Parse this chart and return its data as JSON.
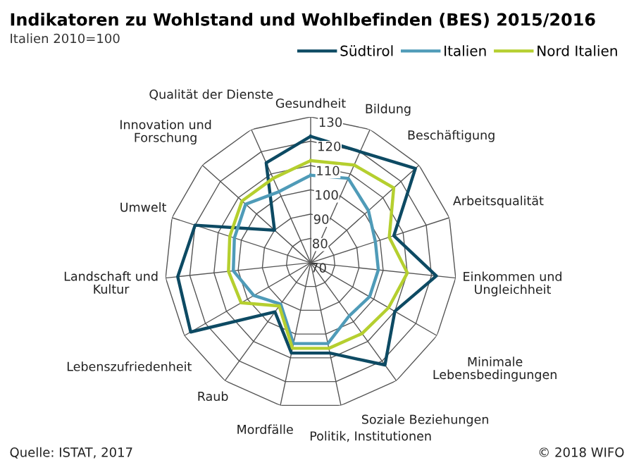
{
  "chart_data": {
    "type": "radar",
    "title": "Indikatoren zu Wohlstand und Wohlbefinden (BES) 2015/2016",
    "subtitle": "Italien 2010=100",
    "categories": [
      "Gesundheit",
      "Bildung",
      "Beschäftigung",
      "Arbeitsqualität",
      "Einkommen und\nUngleichheit",
      "Minimale\nLebensbedingungen",
      "Soziale Beziehungen",
      "Politik, Institutionen",
      "Mordfälle",
      "Raub",
      "Lebenszufriedenheit",
      "Landschaft und\nKultur",
      "Umwelt",
      "Innovation und\nForschung",
      "Qualität der Dienste"
    ],
    "series": [
      {
        "name": "Südtirol",
        "color": "#0d4a63",
        "values": [
          122,
          120,
          128,
          106,
          122,
          110,
          122,
          108,
          108,
          95,
          127,
          125,
          120,
          90,
          115
        ]
      },
      {
        "name": "Italien",
        "color": "#4f9bb8",
        "values": [
          106,
          108,
          102,
          98,
          98,
          98,
          97,
          104,
          104,
          91,
          97,
          102,
          103,
          106,
          102
        ]
      },
      {
        "name": "Nord Italien",
        "color": "#b5cf2f",
        "values": [
          112,
          114,
          116,
          104,
          110,
          107,
          106,
          106,
          106,
          92,
          103,
          104,
          105,
          108,
          108
        ]
      }
    ],
    "ylim": [
      70,
      130
    ],
    "yticks": [
      70,
      80,
      90,
      100,
      110,
      120,
      130
    ],
    "legend": "top right",
    "marker": "none",
    "line_style": "solid",
    "annotations": [
      "Quelle: ISTAT, 2017",
      "© 2018 WIFO"
    ]
  }
}
